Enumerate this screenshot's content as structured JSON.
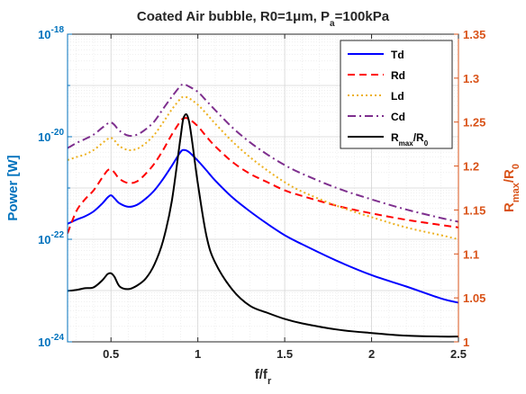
{
  "chart_data": {
    "type": "line",
    "title_parts": [
      "Coated Air bubble, R0=1",
      "μ",
      "m, P",
      "a",
      "=100kPa"
    ],
    "xlabel_parts": [
      "f/f",
      "r"
    ],
    "ylabel_left": "Power [W]",
    "ylabel_right_parts": [
      "R",
      "max",
      "/R",
      "0"
    ],
    "xlim": [
      0.25,
      2.5
    ],
    "ylim_left": [
      1e-24,
      1e-18
    ],
    "yscale_left": "log",
    "ylim_right": [
      1.0,
      1.35
    ],
    "grid": true,
    "legend_position": "top-right",
    "colors": {
      "left_axis": "#0072BD",
      "right_axis": "#D95319",
      "Td": "#0000FF",
      "Rd": "#FF0000",
      "Ld": "#EDB120",
      "Cd": "#7E2F8E",
      "Rmax": "#000000"
    },
    "x_ticks": [
      {
        "value": 0.5,
        "label": "0.5"
      },
      {
        "value": 1,
        "label": "1"
      },
      {
        "value": 1.5,
        "label": "1.5"
      },
      {
        "value": 2,
        "label": "2"
      },
      {
        "value": 2.5,
        "label": "2.5"
      }
    ],
    "y_ticks_left": [
      {
        "value": 1e-18,
        "mantissa": "10",
        "exp": "-18"
      },
      {
        "value": 1e-20,
        "mantissa": "10",
        "exp": "-20"
      },
      {
        "value": 1e-22,
        "mantissa": "10",
        "exp": "-22"
      },
      {
        "value": 1e-24,
        "mantissa": "10",
        "exp": "-24"
      }
    ],
    "y_ticks_right": [
      "1",
      "1.05",
      "1.1",
      "1.15",
      "1.2",
      "1.25",
      "1.3",
      "1.35"
    ],
    "x": [
      0.25,
      0.3,
      0.35,
      0.4,
      0.45,
      0.48,
      0.5,
      0.52,
      0.55,
      0.6,
      0.65,
      0.7,
      0.75,
      0.8,
      0.85,
      0.9,
      0.92,
      0.95,
      1.0,
      1.05,
      1.1,
      1.2,
      1.3,
      1.4,
      1.5,
      1.6,
      1.8,
      2.0,
      2.2,
      2.4,
      2.5
    ],
    "series": [
      {
        "name": "Td",
        "axis": "left",
        "style": "solid",
        "values": [
          2e-22,
          2.4e-22,
          2.8e-22,
          3.5e-22,
          5e-22,
          6.5e-22,
          7.2e-22,
          6.3e-22,
          5e-22,
          4.3e-22,
          4.7e-22,
          6.2e-22,
          9e-22,
          1.5e-21,
          2.7e-21,
          5e-21,
          5.5e-21,
          5e-21,
          3.4e-21,
          2.2e-21,
          1.4e-21,
          6.5e-22,
          3.5e-22,
          2e-22,
          1.2e-22,
          8e-23,
          3.8e-23,
          2e-23,
          1.2e-23,
          7e-24,
          5.8e-24
        ]
      },
      {
        "name": "Rd",
        "axis": "left",
        "style": "dashed",
        "values": [
          1.3e-22,
          3.5e-22,
          6e-22,
          9e-22,
          1.6e-21,
          2.2e-21,
          2.3e-21,
          2e-21,
          1.5e-21,
          1.25e-21,
          1.35e-21,
          1.9e-21,
          3e-21,
          5.5e-21,
          1.1e-20,
          2e-20,
          2.3e-20,
          2.2e-20,
          1.6e-20,
          1e-20,
          6.5e-21,
          3.2e-21,
          1.9e-21,
          1.3e-21,
          9e-22,
          7e-22,
          4.5e-22,
          3.2e-22,
          2.4e-22,
          1.9e-22,
          1.7e-22
        ]
      },
      {
        "name": "Ld",
        "axis": "left",
        "style": "dotted",
        "values": [
          3.5e-21,
          4e-21,
          4.5e-21,
          5.5e-21,
          7.5e-21,
          9e-21,
          9.5e-21,
          8.5e-21,
          6.5e-21,
          5.5e-21,
          5.8e-21,
          7.5e-21,
          1.1e-20,
          1.9e-20,
          3.4e-20,
          5.5e-20,
          6e-20,
          5.6e-20,
          4.2e-20,
          2.8e-20,
          1.8e-20,
          8e-21,
          4e-21,
          2.2e-21,
          1.3e-21,
          8.5e-22,
          4.5e-22,
          2.7e-22,
          1.7e-22,
          1.2e-22,
          1e-22
        ]
      },
      {
        "name": "Cd",
        "axis": "left",
        "style": "dashdot",
        "values": [
          6e-21,
          7.5e-21,
          9e-21,
          1.1e-20,
          1.5e-20,
          1.8e-20,
          1.9e-20,
          1.7e-20,
          1.3e-20,
          1.05e-20,
          1.1e-20,
          1.4e-20,
          2e-20,
          3.5e-20,
          6e-20,
          9.8e-20,
          1.05e-19,
          9.5e-20,
          7.5e-20,
          5e-20,
          3.3e-20,
          1.5e-20,
          7.8e-21,
          4.5e-21,
          2.8e-21,
          1.9e-21,
          1e-21,
          6e-22,
          3.8e-22,
          2.6e-22,
          2.2e-22
        ]
      },
      {
        "name_parts": [
          "R",
          "max",
          "/R",
          "0"
        ],
        "axis": "right",
        "style": "solid",
        "values": [
          1.058,
          1.059,
          1.061,
          1.062,
          1.07,
          1.077,
          1.078,
          1.074,
          1.063,
          1.06,
          1.064,
          1.072,
          1.088,
          1.115,
          1.16,
          1.232,
          1.256,
          1.25,
          1.18,
          1.12,
          1.09,
          1.059,
          1.041,
          1.033,
          1.026,
          1.021,
          1.014,
          1.01,
          1.007,
          1.006,
          1.006
        ]
      }
    ]
  }
}
